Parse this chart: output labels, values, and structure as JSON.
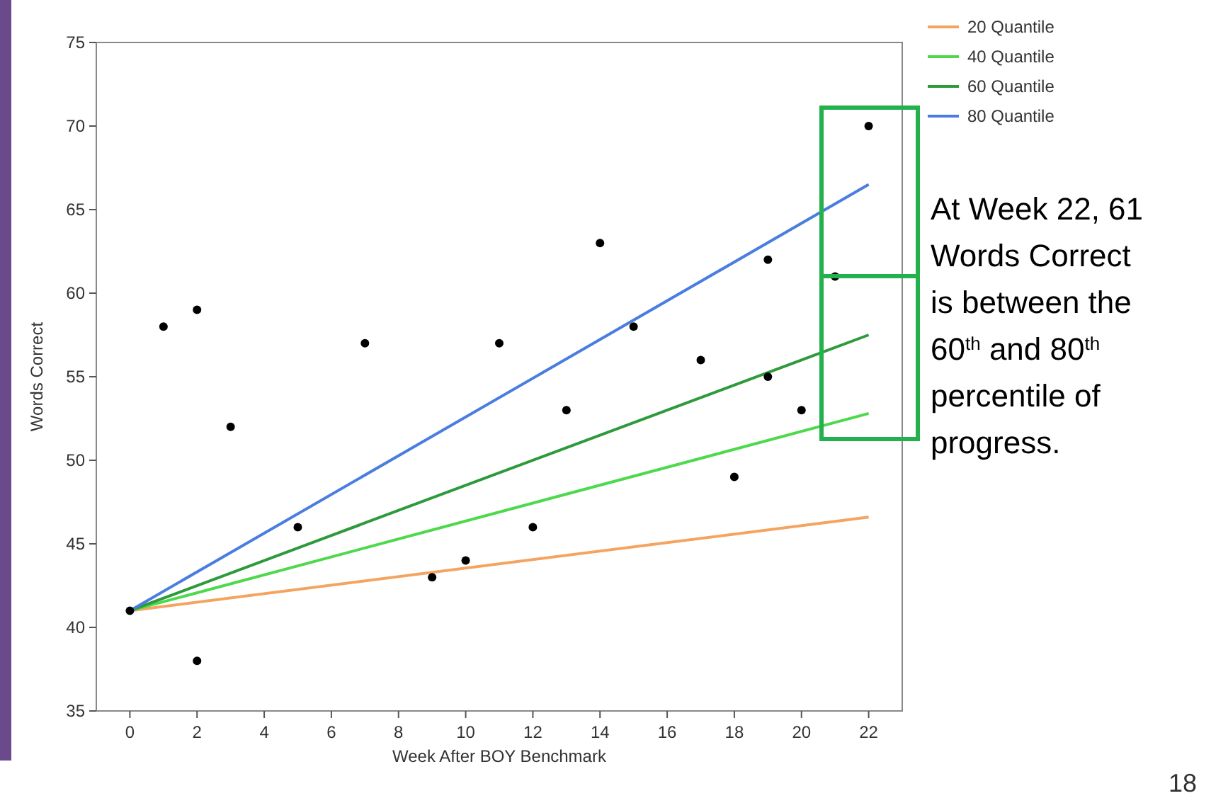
{
  "chart_data": {
    "type": "scatter",
    "xlabel": "Week After BOY Benchmark",
    "ylabel": "Words Correct",
    "xlim": [
      -1,
      23
    ],
    "ylim": [
      35,
      75
    ],
    "xticks": [
      0,
      2,
      4,
      6,
      8,
      10,
      12,
      14,
      16,
      18,
      20,
      22
    ],
    "yticks": [
      35,
      40,
      45,
      50,
      55,
      60,
      65,
      70,
      75
    ],
    "grid": false,
    "legend": "top right",
    "series": [
      {
        "marker": "circle",
        "color": "#000000",
        "x": [
          0,
          1,
          2,
          2,
          3,
          5,
          7,
          9,
          10,
          11,
          12,
          13,
          14,
          15,
          17,
          18,
          19,
          19,
          20,
          21,
          22
        ],
        "values": [
          41,
          58,
          38,
          59,
          52,
          46,
          57,
          43,
          44,
          57,
          46,
          53,
          63,
          58,
          56,
          49,
          62,
          55,
          53,
          61,
          70
        ]
      },
      {
        "type": "line",
        "name": "20 Quantile",
        "color": "#f4a460",
        "x": [
          0,
          22
        ],
        "values": [
          41,
          46.6
        ]
      },
      {
        "type": "line",
        "name": "40 Quantile",
        "color": "#4cd94c",
        "x": [
          0,
          22
        ],
        "values": [
          41,
          52.8
        ]
      },
      {
        "type": "line",
        "name": "60 Quantile",
        "color": "#2e9a3a",
        "x": [
          0,
          22
        ],
        "values": [
          41,
          57.5
        ]
      },
      {
        "type": "line",
        "name": "80 Quantile",
        "color": "#4a7de0",
        "x": [
          0,
          22
        ],
        "values": [
          41,
          66.5
        ]
      }
    ],
    "annotations": [
      "At Week 22, 61 Words Correct is between the 60$^{th}$ and 80$^{th}$ percentile of progress.",
      "18"
    ]
  }
}
